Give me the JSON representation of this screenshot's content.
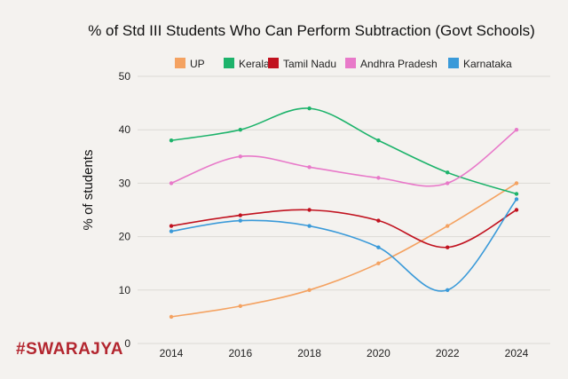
{
  "brand": "#SWARAJYA",
  "chart_data": {
    "type": "line",
    "title": "% of Std III Students Who Can Perform Subtraction (Govt Schools)",
    "xlabel": "",
    "ylabel": "% of students",
    "x": [
      2014,
      2016,
      2018,
      2020,
      2022,
      2024
    ],
    "ylim": [
      0,
      50
    ],
    "yticks": [
      0,
      10,
      20,
      30,
      40,
      50
    ],
    "grid": true,
    "legend": "top",
    "series": [
      {
        "name": "UP",
        "color": "#f4a261",
        "values": [
          5,
          7,
          10,
          15,
          22,
          30
        ]
      },
      {
        "name": "Kerala",
        "color": "#1db36b",
        "values": [
          38,
          40,
          44,
          38,
          32,
          28
        ]
      },
      {
        "name": "Tamil Nadu",
        "color": "#c1121f",
        "values": [
          22,
          24,
          25,
          23,
          18,
          25
        ]
      },
      {
        "name": "Andhra Pradesh",
        "color": "#e879c9",
        "values": [
          30,
          35,
          33,
          31,
          30,
          40
        ]
      },
      {
        "name": "Karnataka",
        "color": "#3a9ad9",
        "values": [
          21,
          23,
          22,
          18,
          10,
          27
        ]
      }
    ]
  }
}
